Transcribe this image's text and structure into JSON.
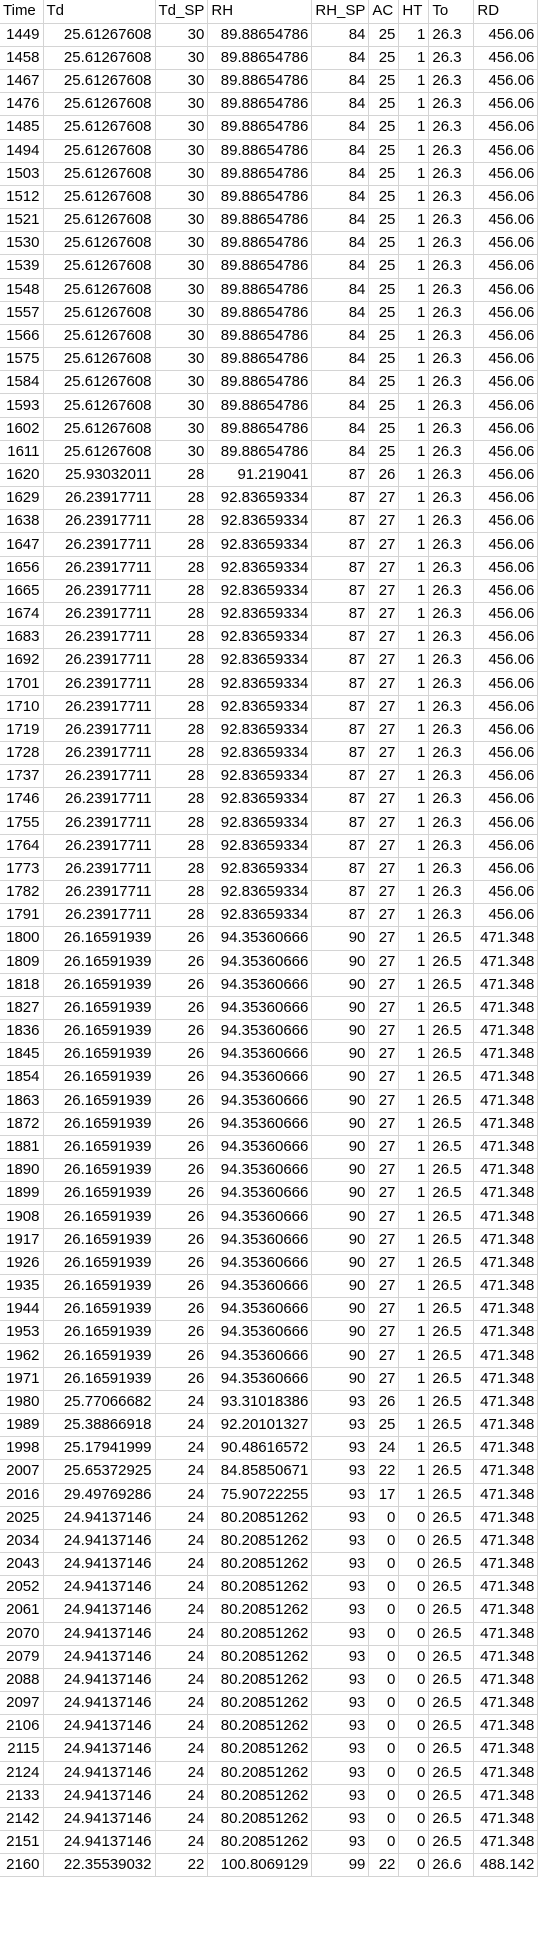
{
  "table": {
    "headers": [
      "Time",
      "Td",
      "Td_SP",
      "RH",
      "RH_SP",
      "AC",
      "HT",
      "To",
      "RD"
    ],
    "rows": [
      [
        "1449",
        "25.61267608",
        "30",
        "89.88654786",
        "84",
        "25",
        "1",
        "26.3",
        "456.06"
      ],
      [
        "1458",
        "25.61267608",
        "30",
        "89.88654786",
        "84",
        "25",
        "1",
        "26.3",
        "456.06"
      ],
      [
        "1467",
        "25.61267608",
        "30",
        "89.88654786",
        "84",
        "25",
        "1",
        "26.3",
        "456.06"
      ],
      [
        "1476",
        "25.61267608",
        "30",
        "89.88654786",
        "84",
        "25",
        "1",
        "26.3",
        "456.06"
      ],
      [
        "1485",
        "25.61267608",
        "30",
        "89.88654786",
        "84",
        "25",
        "1",
        "26.3",
        "456.06"
      ],
      [
        "1494",
        "25.61267608",
        "30",
        "89.88654786",
        "84",
        "25",
        "1",
        "26.3",
        "456.06"
      ],
      [
        "1503",
        "25.61267608",
        "30",
        "89.88654786",
        "84",
        "25",
        "1",
        "26.3",
        "456.06"
      ],
      [
        "1512",
        "25.61267608",
        "30",
        "89.88654786",
        "84",
        "25",
        "1",
        "26.3",
        "456.06"
      ],
      [
        "1521",
        "25.61267608",
        "30",
        "89.88654786",
        "84",
        "25",
        "1",
        "26.3",
        "456.06"
      ],
      [
        "1530",
        "25.61267608",
        "30",
        "89.88654786",
        "84",
        "25",
        "1",
        "26.3",
        "456.06"
      ],
      [
        "1539",
        "25.61267608",
        "30",
        "89.88654786",
        "84",
        "25",
        "1",
        "26.3",
        "456.06"
      ],
      [
        "1548",
        "25.61267608",
        "30",
        "89.88654786",
        "84",
        "25",
        "1",
        "26.3",
        "456.06"
      ],
      [
        "1557",
        "25.61267608",
        "30",
        "89.88654786",
        "84",
        "25",
        "1",
        "26.3",
        "456.06"
      ],
      [
        "1566",
        "25.61267608",
        "30",
        "89.88654786",
        "84",
        "25",
        "1",
        "26.3",
        "456.06"
      ],
      [
        "1575",
        "25.61267608",
        "30",
        "89.88654786",
        "84",
        "25",
        "1",
        "26.3",
        "456.06"
      ],
      [
        "1584",
        "25.61267608",
        "30",
        "89.88654786",
        "84",
        "25",
        "1",
        "26.3",
        "456.06"
      ],
      [
        "1593",
        "25.61267608",
        "30",
        "89.88654786",
        "84",
        "25",
        "1",
        "26.3",
        "456.06"
      ],
      [
        "1602",
        "25.61267608",
        "30",
        "89.88654786",
        "84",
        "25",
        "1",
        "26.3",
        "456.06"
      ],
      [
        "1611",
        "25.61267608",
        "30",
        "89.88654786",
        "84",
        "25",
        "1",
        "26.3",
        "456.06"
      ],
      [
        "1620",
        "25.93032011",
        "28",
        "91.219041",
        "87",
        "26",
        "1",
        "26.3",
        "456.06"
      ],
      [
        "1629",
        "26.23917711",
        "28",
        "92.83659334",
        "87",
        "27",
        "1",
        "26.3",
        "456.06"
      ],
      [
        "1638",
        "26.23917711",
        "28",
        "92.83659334",
        "87",
        "27",
        "1",
        "26.3",
        "456.06"
      ],
      [
        "1647",
        "26.23917711",
        "28",
        "92.83659334",
        "87",
        "27",
        "1",
        "26.3",
        "456.06"
      ],
      [
        "1656",
        "26.23917711",
        "28",
        "92.83659334",
        "87",
        "27",
        "1",
        "26.3",
        "456.06"
      ],
      [
        "1665",
        "26.23917711",
        "28",
        "92.83659334",
        "87",
        "27",
        "1",
        "26.3",
        "456.06"
      ],
      [
        "1674",
        "26.23917711",
        "28",
        "92.83659334",
        "87",
        "27",
        "1",
        "26.3",
        "456.06"
      ],
      [
        "1683",
        "26.23917711",
        "28",
        "92.83659334",
        "87",
        "27",
        "1",
        "26.3",
        "456.06"
      ],
      [
        "1692",
        "26.23917711",
        "28",
        "92.83659334",
        "87",
        "27",
        "1",
        "26.3",
        "456.06"
      ],
      [
        "1701",
        "26.23917711",
        "28",
        "92.83659334",
        "87",
        "27",
        "1",
        "26.3",
        "456.06"
      ],
      [
        "1710",
        "26.23917711",
        "28",
        "92.83659334",
        "87",
        "27",
        "1",
        "26.3",
        "456.06"
      ],
      [
        "1719",
        "26.23917711",
        "28",
        "92.83659334",
        "87",
        "27",
        "1",
        "26.3",
        "456.06"
      ],
      [
        "1728",
        "26.23917711",
        "28",
        "92.83659334",
        "87",
        "27",
        "1",
        "26.3",
        "456.06"
      ],
      [
        "1737",
        "26.23917711",
        "28",
        "92.83659334",
        "87",
        "27",
        "1",
        "26.3",
        "456.06"
      ],
      [
        "1746",
        "26.23917711",
        "28",
        "92.83659334",
        "87",
        "27",
        "1",
        "26.3",
        "456.06"
      ],
      [
        "1755",
        "26.23917711",
        "28",
        "92.83659334",
        "87",
        "27",
        "1",
        "26.3",
        "456.06"
      ],
      [
        "1764",
        "26.23917711",
        "28",
        "92.83659334",
        "87",
        "27",
        "1",
        "26.3",
        "456.06"
      ],
      [
        "1773",
        "26.23917711",
        "28",
        "92.83659334",
        "87",
        "27",
        "1",
        "26.3",
        "456.06"
      ],
      [
        "1782",
        "26.23917711",
        "28",
        "92.83659334",
        "87",
        "27",
        "1",
        "26.3",
        "456.06"
      ],
      [
        "1791",
        "26.23917711",
        "28",
        "92.83659334",
        "87",
        "27",
        "1",
        "26.3",
        "456.06"
      ],
      [
        "1800",
        "26.16591939",
        "26",
        "94.35360666",
        "90",
        "27",
        "1",
        "26.5",
        "471.348"
      ],
      [
        "1809",
        "26.16591939",
        "26",
        "94.35360666",
        "90",
        "27",
        "1",
        "26.5",
        "471.348"
      ],
      [
        "1818",
        "26.16591939",
        "26",
        "94.35360666",
        "90",
        "27",
        "1",
        "26.5",
        "471.348"
      ],
      [
        "1827",
        "26.16591939",
        "26",
        "94.35360666",
        "90",
        "27",
        "1",
        "26.5",
        "471.348"
      ],
      [
        "1836",
        "26.16591939",
        "26",
        "94.35360666",
        "90",
        "27",
        "1",
        "26.5",
        "471.348"
      ],
      [
        "1845",
        "26.16591939",
        "26",
        "94.35360666",
        "90",
        "27",
        "1",
        "26.5",
        "471.348"
      ],
      [
        "1854",
        "26.16591939",
        "26",
        "94.35360666",
        "90",
        "27",
        "1",
        "26.5",
        "471.348"
      ],
      [
        "1863",
        "26.16591939",
        "26",
        "94.35360666",
        "90",
        "27",
        "1",
        "26.5",
        "471.348"
      ],
      [
        "1872",
        "26.16591939",
        "26",
        "94.35360666",
        "90",
        "27",
        "1",
        "26.5",
        "471.348"
      ],
      [
        "1881",
        "26.16591939",
        "26",
        "94.35360666",
        "90",
        "27",
        "1",
        "26.5",
        "471.348"
      ],
      [
        "1890",
        "26.16591939",
        "26",
        "94.35360666",
        "90",
        "27",
        "1",
        "26.5",
        "471.348"
      ],
      [
        "1899",
        "26.16591939",
        "26",
        "94.35360666",
        "90",
        "27",
        "1",
        "26.5",
        "471.348"
      ],
      [
        "1908",
        "26.16591939",
        "26",
        "94.35360666",
        "90",
        "27",
        "1",
        "26.5",
        "471.348"
      ],
      [
        "1917",
        "26.16591939",
        "26",
        "94.35360666",
        "90",
        "27",
        "1",
        "26.5",
        "471.348"
      ],
      [
        "1926",
        "26.16591939",
        "26",
        "94.35360666",
        "90",
        "27",
        "1",
        "26.5",
        "471.348"
      ],
      [
        "1935",
        "26.16591939",
        "26",
        "94.35360666",
        "90",
        "27",
        "1",
        "26.5",
        "471.348"
      ],
      [
        "1944",
        "26.16591939",
        "26",
        "94.35360666",
        "90",
        "27",
        "1",
        "26.5",
        "471.348"
      ],
      [
        "1953",
        "26.16591939",
        "26",
        "94.35360666",
        "90",
        "27",
        "1",
        "26.5",
        "471.348"
      ],
      [
        "1962",
        "26.16591939",
        "26",
        "94.35360666",
        "90",
        "27",
        "1",
        "26.5",
        "471.348"
      ],
      [
        "1971",
        "26.16591939",
        "26",
        "94.35360666",
        "90",
        "27",
        "1",
        "26.5",
        "471.348"
      ],
      [
        "1980",
        "25.77066682",
        "24",
        "93.31018386",
        "93",
        "26",
        "1",
        "26.5",
        "471.348"
      ],
      [
        "1989",
        "25.38866918",
        "24",
        "92.20101327",
        "93",
        "25",
        "1",
        "26.5",
        "471.348"
      ],
      [
        "1998",
        "25.17941999",
        "24",
        "90.48616572",
        "93",
        "24",
        "1",
        "26.5",
        "471.348"
      ],
      [
        "2007",
        "25.65372925",
        "24",
        "84.85850671",
        "93",
        "22",
        "1",
        "26.5",
        "471.348"
      ],
      [
        "2016",
        "29.49769286",
        "24",
        "75.90722255",
        "93",
        "17",
        "1",
        "26.5",
        "471.348"
      ],
      [
        "2025",
        "24.94137146",
        "24",
        "80.20851262",
        "93",
        "0",
        "0",
        "26.5",
        "471.348"
      ],
      [
        "2034",
        "24.94137146",
        "24",
        "80.20851262",
        "93",
        "0",
        "0",
        "26.5",
        "471.348"
      ],
      [
        "2043",
        "24.94137146",
        "24",
        "80.20851262",
        "93",
        "0",
        "0",
        "26.5",
        "471.348"
      ],
      [
        "2052",
        "24.94137146",
        "24",
        "80.20851262",
        "93",
        "0",
        "0",
        "26.5",
        "471.348"
      ],
      [
        "2061",
        "24.94137146",
        "24",
        "80.20851262",
        "93",
        "0",
        "0",
        "26.5",
        "471.348"
      ],
      [
        "2070",
        "24.94137146",
        "24",
        "80.20851262",
        "93",
        "0",
        "0",
        "26.5",
        "471.348"
      ],
      [
        "2079",
        "24.94137146",
        "24",
        "80.20851262",
        "93",
        "0",
        "0",
        "26.5",
        "471.348"
      ],
      [
        "2088",
        "24.94137146",
        "24",
        "80.20851262",
        "93",
        "0",
        "0",
        "26.5",
        "471.348"
      ],
      [
        "2097",
        "24.94137146",
        "24",
        "80.20851262",
        "93",
        "0",
        "0",
        "26.5",
        "471.348"
      ],
      [
        "2106",
        "24.94137146",
        "24",
        "80.20851262",
        "93",
        "0",
        "0",
        "26.5",
        "471.348"
      ],
      [
        "2115",
        "24.94137146",
        "24",
        "80.20851262",
        "93",
        "0",
        "0",
        "26.5",
        "471.348"
      ],
      [
        "2124",
        "24.94137146",
        "24",
        "80.20851262",
        "93",
        "0",
        "0",
        "26.5",
        "471.348"
      ],
      [
        "2133",
        "24.94137146",
        "24",
        "80.20851262",
        "93",
        "0",
        "0",
        "26.5",
        "471.348"
      ],
      [
        "2142",
        "24.94137146",
        "24",
        "80.20851262",
        "93",
        "0",
        "0",
        "26.5",
        "471.348"
      ],
      [
        "2151",
        "24.94137146",
        "24",
        "80.20851262",
        "93",
        "0",
        "0",
        "26.5",
        "471.348"
      ],
      [
        "2160",
        "22.35539032",
        "22",
        "100.8069129",
        "99",
        "22",
        "0",
        "26.6",
        "488.142"
      ]
    ]
  }
}
